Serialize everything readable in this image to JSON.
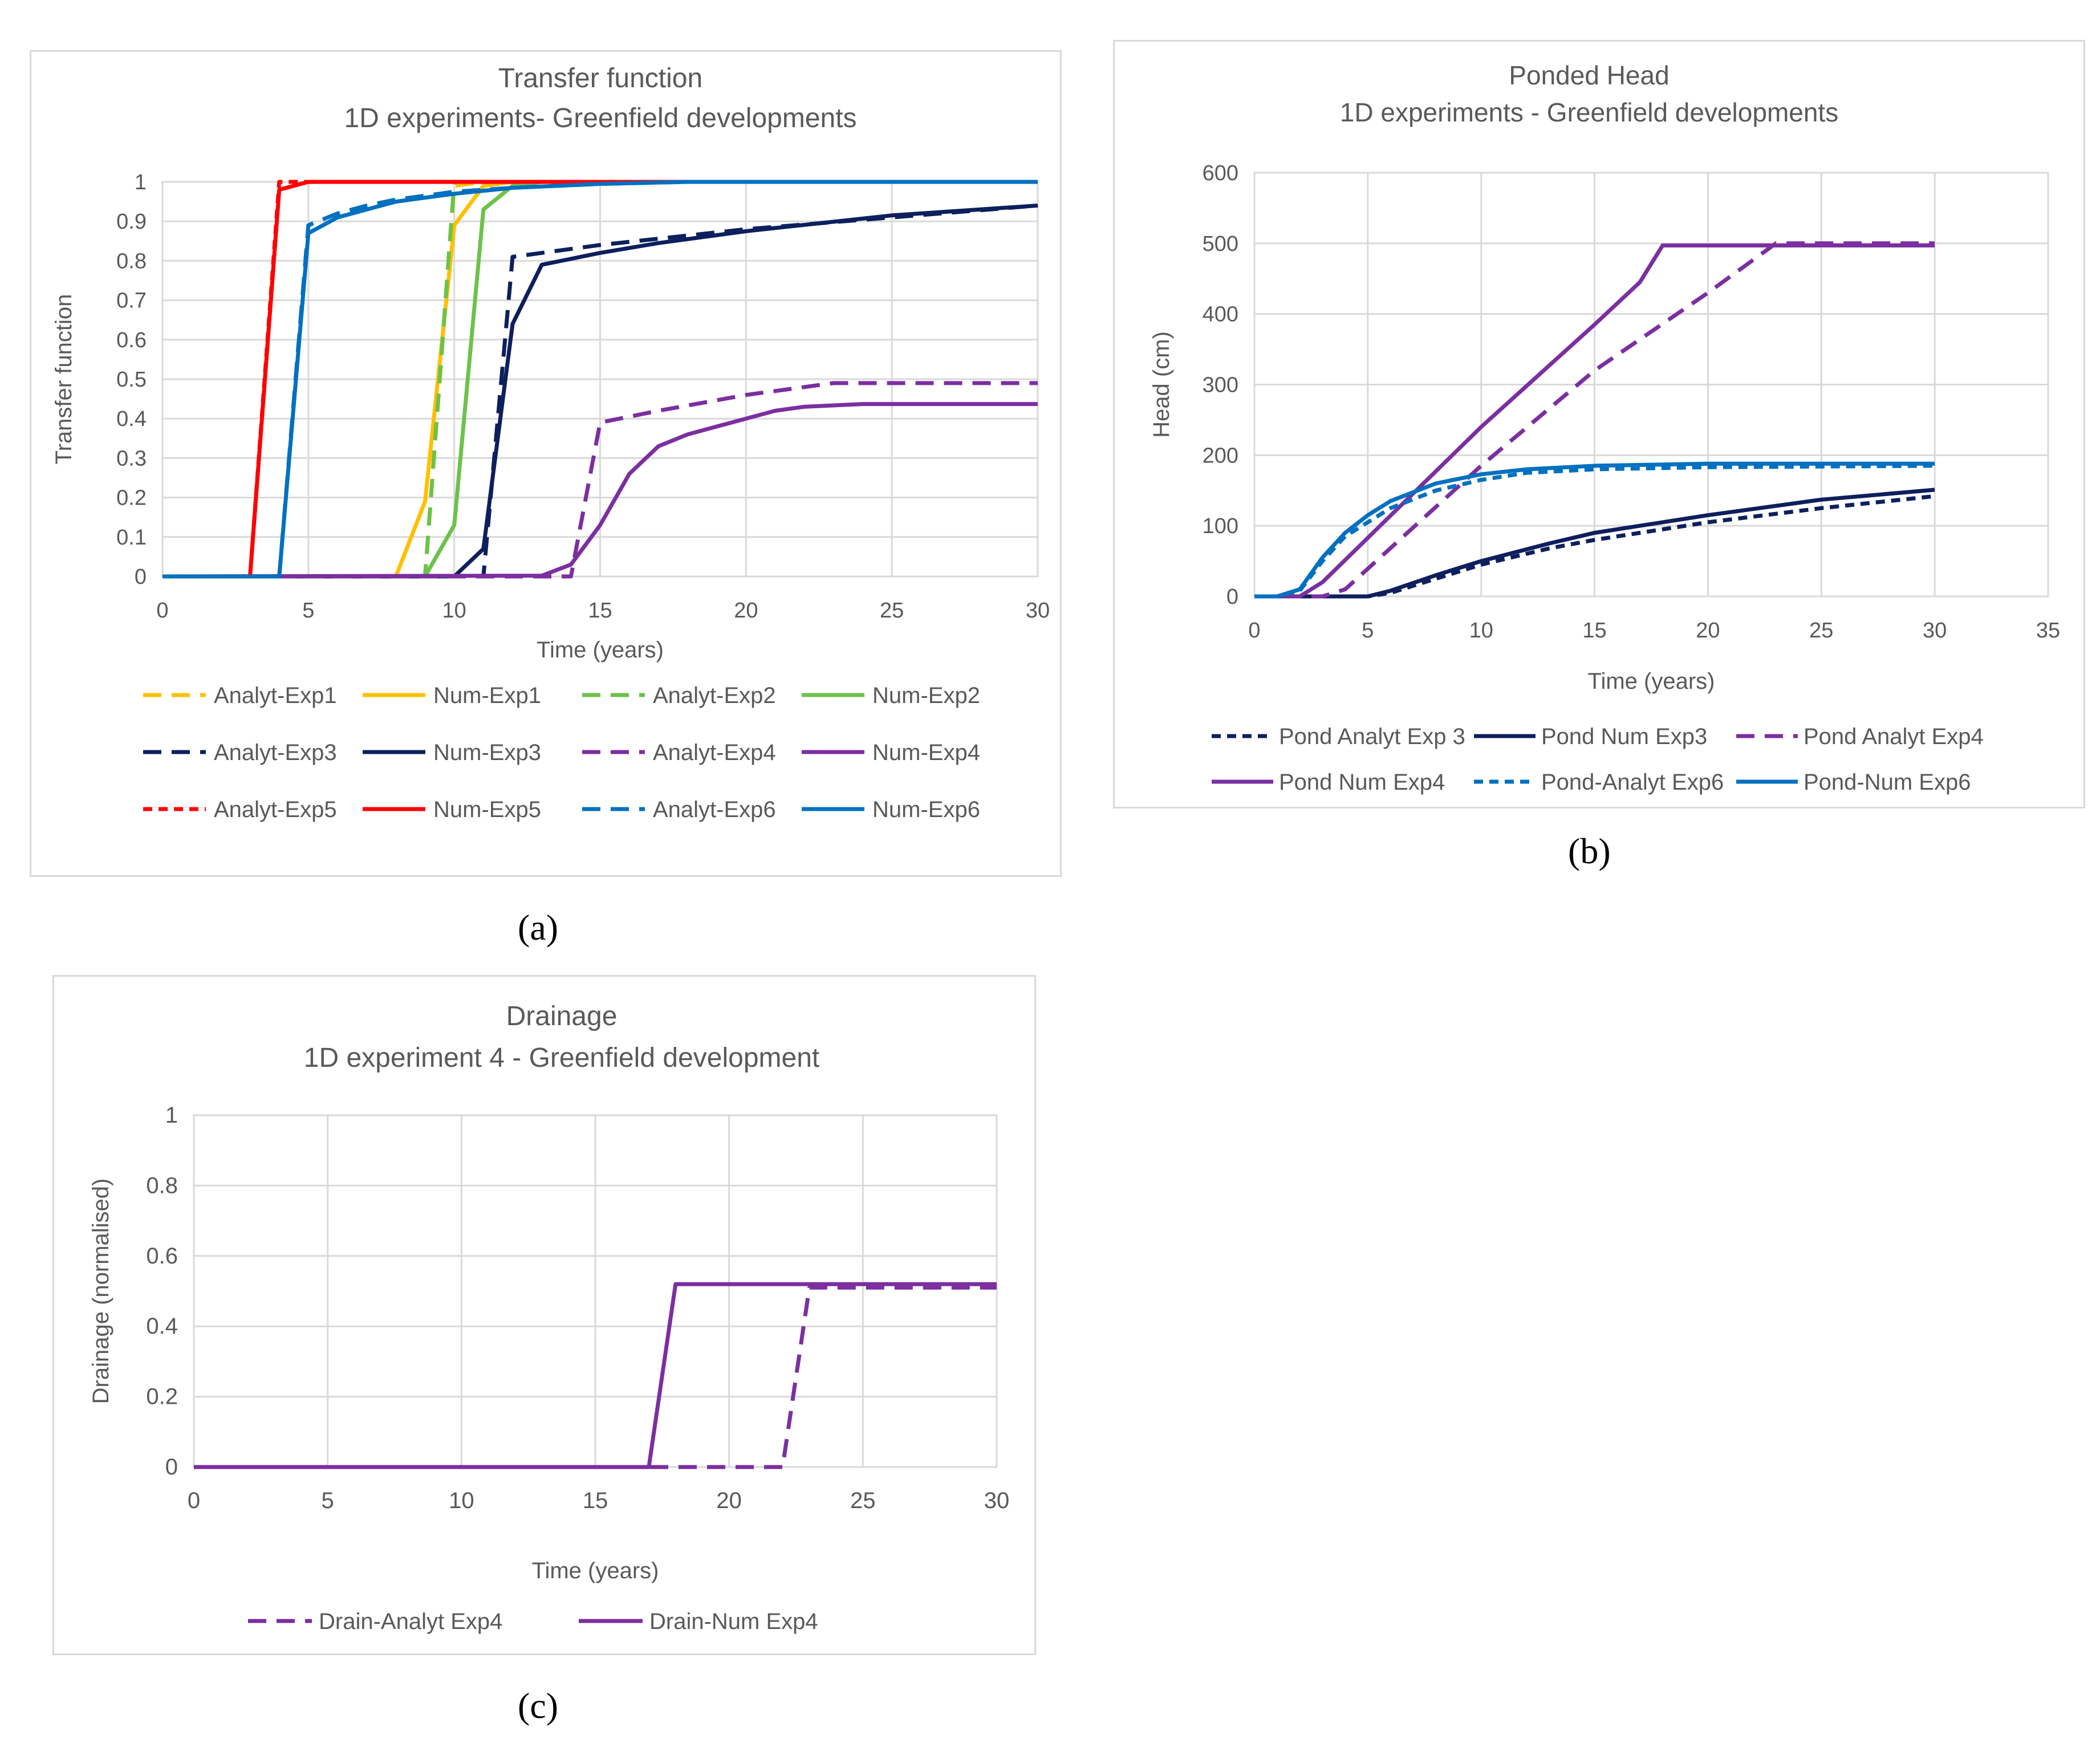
{
  "panels": {
    "a": "(a)",
    "b": "(b)",
    "c": "(c)"
  },
  "chart_data": [
    {
      "id": "a",
      "type": "line",
      "title": [
        "Transfer function",
        "1D  experiments- Greenfield developments"
      ],
      "xlabel": "Time (years)",
      "ylabel": "Transfer function",
      "xlim": [
        0,
        30
      ],
      "ylim": [
        0,
        1
      ],
      "xticks": [
        0,
        5,
        10,
        15,
        20,
        25,
        30
      ],
      "yticks": [
        0,
        0.1,
        0.2,
        0.3,
        0.4,
        0.5,
        0.6,
        0.7,
        0.8,
        0.9,
        1
      ],
      "ytick_labels": [
        "0",
        "0.1",
        "0.2",
        "0.3",
        "0.4",
        "0.5",
        "0.6",
        "0.7",
        "0.8",
        "0.9",
        "1"
      ],
      "series": [
        {
          "name": "Analyt-Exp1",
          "color": "#FFC000",
          "dash": "long",
          "x": [
            0,
            8,
            9,
            10,
            11,
            12,
            30
          ],
          "y": [
            0,
            0,
            0,
            0.99,
            1,
            1,
            1
          ]
        },
        {
          "name": "Num-Exp1",
          "color": "#FFC000",
          "dash": "solid",
          "x": [
            0,
            8,
            9,
            10,
            11,
            12,
            30
          ],
          "y": [
            0,
            0,
            0.19,
            0.89,
            0.99,
            1,
            1
          ]
        },
        {
          "name": "Analyt-Exp2",
          "color": "#6CC24A",
          "dash": "long",
          "x": [
            0,
            9,
            10,
            11,
            12,
            30
          ],
          "y": [
            0,
            0,
            1,
            1,
            1,
            1
          ]
        },
        {
          "name": "Num-Exp2",
          "color": "#6CC24A",
          "dash": "solid",
          "x": [
            0,
            9,
            10,
            11,
            12,
            13,
            30
          ],
          "y": [
            0,
            0,
            0.13,
            0.93,
            0.99,
            1,
            1
          ]
        },
        {
          "name": "Analyt-Exp3",
          "color": "#0D1F5C",
          "dash": "long",
          "x": [
            0,
            11,
            12,
            15,
            20,
            25,
            30
          ],
          "y": [
            0,
            0,
            0.81,
            0.84,
            0.88,
            0.91,
            0.94
          ]
        },
        {
          "name": "Num-Exp3",
          "color": "#0D1F5C",
          "dash": "solid",
          "x": [
            0,
            10,
            11,
            12,
            13,
            15,
            17,
            20,
            25,
            30
          ],
          "y": [
            0,
            0,
            0.07,
            0.64,
            0.79,
            0.82,
            0.845,
            0.875,
            0.915,
            0.94
          ]
        },
        {
          "name": "Analyt-Exp4",
          "color": "#7B2FA0",
          "dash": "long",
          "x": [
            0,
            14,
            15,
            17,
            20,
            22,
            23,
            25,
            30
          ],
          "y": [
            0,
            0,
            0.39,
            0.42,
            0.46,
            0.48,
            0.49,
            0.49,
            0.49
          ]
        },
        {
          "name": "Num-Exp4",
          "color": "#7B2FA0",
          "dash": "solid",
          "x": [
            0,
            13,
            14,
            15,
            16,
            17,
            18,
            20,
            21,
            22,
            24,
            30
          ],
          "y": [
            0,
            0.002,
            0.03,
            0.13,
            0.26,
            0.33,
            0.36,
            0.4,
            0.42,
            0.43,
            0.437,
            0.437
          ]
        },
        {
          "name": "Analyt-Exp5",
          "color": "#FF0000",
          "dash": "short",
          "x": [
            0,
            3,
            4,
            5,
            30
          ],
          "y": [
            0,
            0,
            1,
            1,
            1
          ]
        },
        {
          "name": "Num-Exp5",
          "color": "#FF0000",
          "dash": "solid",
          "x": [
            0,
            3,
            4,
            5,
            30
          ],
          "y": [
            0,
            0,
            0.98,
            1,
            1
          ]
        },
        {
          "name": "Analyt-Exp6",
          "color": "#0070C0",
          "dash": "long",
          "x": [
            0,
            4,
            5,
            6,
            7,
            8,
            9,
            10,
            12,
            15,
            18,
            30
          ],
          "y": [
            0,
            0,
            0.89,
            0.92,
            0.94,
            0.955,
            0.965,
            0.975,
            0.985,
            0.995,
            1,
            1
          ]
        },
        {
          "name": "Num-Exp6",
          "color": "#0070C0",
          "dash": "solid",
          "x": [
            0,
            4,
            5,
            6,
            7,
            8,
            9,
            10,
            12,
            15,
            18,
            30
          ],
          "y": [
            0,
            0,
            0.87,
            0.91,
            0.93,
            0.95,
            0.96,
            0.97,
            0.985,
            0.995,
            1,
            1
          ]
        }
      ]
    },
    {
      "id": "b",
      "type": "line",
      "title": [
        "Ponded Head",
        "1D  experiments - Greenfield developments"
      ],
      "xlabel": "Time (years)",
      "ylabel": "Head (cm)",
      "xlim": [
        0,
        35
      ],
      "ylim": [
        0,
        600
      ],
      "xticks": [
        0,
        5,
        10,
        15,
        20,
        25,
        30,
        35
      ],
      "yticks": [
        0,
        100,
        200,
        300,
        400,
        500,
        600
      ],
      "ytick_labels": [
        "0",
        "100",
        "200",
        "300",
        "400",
        "500",
        "600"
      ],
      "series": [
        {
          "name": "Pond Analyt Exp 3",
          "color": "#0D1F5C",
          "dash": "short",
          "x": [
            0,
            5,
            6,
            8,
            10,
            13,
            15,
            20,
            25,
            30
          ],
          "y": [
            0,
            0,
            5,
            25,
            45,
            68,
            80,
            105,
            125,
            142
          ]
        },
        {
          "name": "Pond Num Exp3",
          "color": "#0D1F5C",
          "dash": "solid",
          "x": [
            0,
            5,
            6,
            8,
            10,
            13,
            15,
            20,
            25,
            30
          ],
          "y": [
            0,
            0,
            8,
            30,
            50,
            75,
            90,
            115,
            137,
            151
          ]
        },
        {
          "name": "Pond Analyt Exp4",
          "color": "#7B2FA0",
          "dash": "long",
          "x": [
            0,
            3,
            4,
            10,
            15,
            20,
            23,
            30
          ],
          "y": [
            0,
            0,
            10,
            185,
            320,
            430,
            500,
            500
          ]
        },
        {
          "name": "Pond Num Exp4",
          "color": "#7B2FA0",
          "dash": "solid",
          "x": [
            0,
            2,
            3,
            10,
            15,
            17,
            18,
            30
          ],
          "y": [
            0,
            0,
            20,
            240,
            385,
            445,
            497,
            497
          ]
        },
        {
          "name": "Pond-Analyt Exp6",
          "color": "#0070C0",
          "dash": "short",
          "x": [
            0,
            1,
            2,
            3,
            4,
            5,
            6,
            8,
            10,
            12,
            15,
            20,
            30
          ],
          "y": [
            0,
            0,
            8,
            50,
            85,
            105,
            125,
            150,
            165,
            175,
            180,
            183,
            185
          ]
        },
        {
          "name": "Pond-Num Exp6",
          "color": "#0070C0",
          "dash": "solid",
          "x": [
            0,
            1,
            2,
            3,
            4,
            5,
            6,
            8,
            10,
            12,
            15,
            20,
            30
          ],
          "y": [
            0,
            0,
            10,
            55,
            90,
            115,
            135,
            160,
            173,
            180,
            185,
            188,
            188
          ]
        }
      ]
    },
    {
      "id": "c",
      "type": "line",
      "title": [
        "Drainage",
        "1D experiment 4 - Greenfield development"
      ],
      "xlabel": "Time (years)",
      "ylabel": "Drainage (normalised)",
      "xlim": [
        0,
        30
      ],
      "ylim": [
        0,
        1
      ],
      "xticks": [
        0,
        5,
        10,
        15,
        20,
        25,
        30
      ],
      "yticks": [
        0,
        0.2,
        0.4,
        0.6,
        0.8,
        1
      ],
      "ytick_labels": [
        "0",
        "0.2",
        "0.4",
        "0.6",
        "0.8",
        "1"
      ],
      "series": [
        {
          "name": "Drain-Analyt Exp4",
          "color": "#7B2FA0",
          "dash": "long",
          "x": [
            0,
            22,
            23,
            30
          ],
          "y": [
            0,
            0,
            0.51,
            0.51
          ]
        },
        {
          "name": "Drain-Num Exp4",
          "color": "#7B2FA0",
          "dash": "solid",
          "x": [
            0,
            17,
            18,
            30
          ],
          "y": [
            0,
            0,
            0.52,
            0.52
          ]
        }
      ]
    }
  ]
}
